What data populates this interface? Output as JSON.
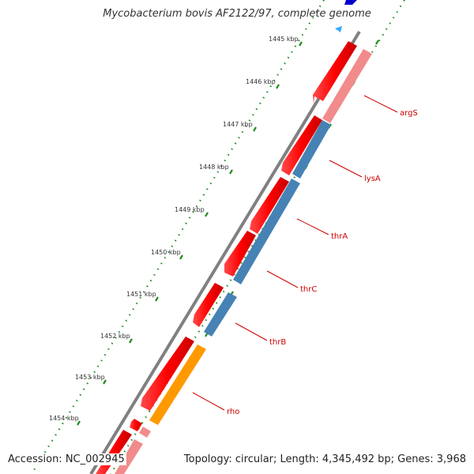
{
  "header": {
    "title": "Mycobacterium bovis AF2122/97, complete genome"
  },
  "footer": {
    "accession": "Accession: NC_002945",
    "summary": "Topology: circular; Length: 4,345,492 bp; Genes: 3,968"
  },
  "ruler": {
    "ticks": [
      "1445 kbp",
      "1446 kbp",
      "1447 kbp",
      "1448 kbp",
      "1449 kbp",
      "1450 kbp",
      "1451 kbp",
      "1452 kbp",
      "1453 kbp",
      "1454 kbp"
    ]
  },
  "genes": [
    {
      "label": "argS"
    },
    {
      "label": "lysA"
    },
    {
      "label": "thrA"
    },
    {
      "label": "thrC"
    },
    {
      "label": "thrB"
    },
    {
      "label": "rho"
    }
  ],
  "colors": {
    "backbone": "#808080",
    "forward_feature": "#ff0000",
    "forward_feature_light": "#f28b8b",
    "blue_feature": "#4682b4",
    "orange_feature": "#ff9900",
    "tick_green": "#228b22",
    "label_red": "#cc0000"
  }
}
